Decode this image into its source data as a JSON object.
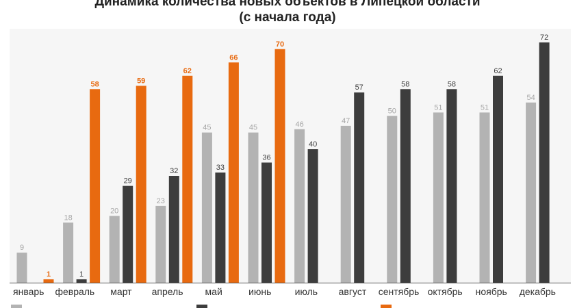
{
  "title": "Динамика количества новых объектов в Липецкой области\n(с начала года)",
  "colors": {
    "series_1": "#b3b3b3",
    "series_2": "#3d3d3d",
    "series_3": "#e86a10",
    "background": "#f6f6f6",
    "axis": "#555555",
    "tick_text": "#333333"
  },
  "chart_data": {
    "type": "bar",
    "categories": [
      "январь",
      "февраль",
      "март",
      "апрель",
      "май",
      "июнь",
      "июль",
      "август",
      "сентябрь",
      "октябрь",
      "ноябрь",
      "декабрь"
    ],
    "series": [
      {
        "color": "#b3b3b3",
        "values": [
          9,
          18,
          20,
          23,
          45,
          45,
          46,
          47,
          50,
          51,
          51,
          54
        ]
      },
      {
        "color": "#3d3d3d",
        "values": [
          null,
          1,
          29,
          32,
          33,
          36,
          40,
          57,
          58,
          58,
          62,
          72
        ]
      },
      {
        "color": "#e86a10",
        "values": [
          1,
          58,
          59,
          62,
          66,
          70,
          null,
          null,
          null,
          null,
          null,
          null
        ]
      }
    ],
    "ylim": [
      0,
      72
    ],
    "grid": false,
    "data_labels": true,
    "legend": "bottom"
  }
}
